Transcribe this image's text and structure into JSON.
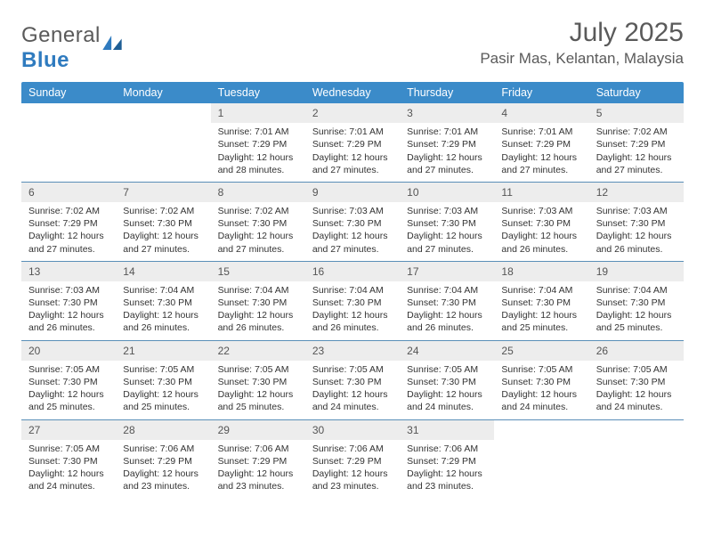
{
  "logo": {
    "text_gray": "General",
    "text_blue": "Blue"
  },
  "title": {
    "month": "July 2025",
    "location": "Pasir Mas, Kelantan, Malaysia"
  },
  "colors": {
    "header_bg": "#3b8bc9",
    "header_text": "#ffffff",
    "daynum_bg": "#ededed",
    "daynum_text": "#555555",
    "divider": "#5a8fb8",
    "logo_gray": "#5a5a5a",
    "logo_blue": "#2f7bbf",
    "body_text": "#333333",
    "page_bg": "#ffffff"
  },
  "typography": {
    "month_title_size": 30,
    "location_size": 17,
    "day_header_size": 12.5,
    "daynum_size": 12,
    "cell_text_size": 10.5,
    "font_family": "Arial"
  },
  "day_headers": [
    "Sunday",
    "Monday",
    "Tuesday",
    "Wednesday",
    "Thursday",
    "Friday",
    "Saturday"
  ],
  "weeks": [
    [
      {
        "empty": true
      },
      {
        "empty": true
      },
      {
        "day": "1",
        "sunrise": "Sunrise: 7:01 AM",
        "sunset": "Sunset: 7:29 PM",
        "daylight": "Daylight: 12 hours and 28 minutes."
      },
      {
        "day": "2",
        "sunrise": "Sunrise: 7:01 AM",
        "sunset": "Sunset: 7:29 PM",
        "daylight": "Daylight: 12 hours and 27 minutes."
      },
      {
        "day": "3",
        "sunrise": "Sunrise: 7:01 AM",
        "sunset": "Sunset: 7:29 PM",
        "daylight": "Daylight: 12 hours and 27 minutes."
      },
      {
        "day": "4",
        "sunrise": "Sunrise: 7:01 AM",
        "sunset": "Sunset: 7:29 PM",
        "daylight": "Daylight: 12 hours and 27 minutes."
      },
      {
        "day": "5",
        "sunrise": "Sunrise: 7:02 AM",
        "sunset": "Sunset: 7:29 PM",
        "daylight": "Daylight: 12 hours and 27 minutes."
      }
    ],
    [
      {
        "day": "6",
        "sunrise": "Sunrise: 7:02 AM",
        "sunset": "Sunset: 7:29 PM",
        "daylight": "Daylight: 12 hours and 27 minutes."
      },
      {
        "day": "7",
        "sunrise": "Sunrise: 7:02 AM",
        "sunset": "Sunset: 7:30 PM",
        "daylight": "Daylight: 12 hours and 27 minutes."
      },
      {
        "day": "8",
        "sunrise": "Sunrise: 7:02 AM",
        "sunset": "Sunset: 7:30 PM",
        "daylight": "Daylight: 12 hours and 27 minutes."
      },
      {
        "day": "9",
        "sunrise": "Sunrise: 7:03 AM",
        "sunset": "Sunset: 7:30 PM",
        "daylight": "Daylight: 12 hours and 27 minutes."
      },
      {
        "day": "10",
        "sunrise": "Sunrise: 7:03 AM",
        "sunset": "Sunset: 7:30 PM",
        "daylight": "Daylight: 12 hours and 27 minutes."
      },
      {
        "day": "11",
        "sunrise": "Sunrise: 7:03 AM",
        "sunset": "Sunset: 7:30 PM",
        "daylight": "Daylight: 12 hours and 26 minutes."
      },
      {
        "day": "12",
        "sunrise": "Sunrise: 7:03 AM",
        "sunset": "Sunset: 7:30 PM",
        "daylight": "Daylight: 12 hours and 26 minutes."
      }
    ],
    [
      {
        "day": "13",
        "sunrise": "Sunrise: 7:03 AM",
        "sunset": "Sunset: 7:30 PM",
        "daylight": "Daylight: 12 hours and 26 minutes."
      },
      {
        "day": "14",
        "sunrise": "Sunrise: 7:04 AM",
        "sunset": "Sunset: 7:30 PM",
        "daylight": "Daylight: 12 hours and 26 minutes."
      },
      {
        "day": "15",
        "sunrise": "Sunrise: 7:04 AM",
        "sunset": "Sunset: 7:30 PM",
        "daylight": "Daylight: 12 hours and 26 minutes."
      },
      {
        "day": "16",
        "sunrise": "Sunrise: 7:04 AM",
        "sunset": "Sunset: 7:30 PM",
        "daylight": "Daylight: 12 hours and 26 minutes."
      },
      {
        "day": "17",
        "sunrise": "Sunrise: 7:04 AM",
        "sunset": "Sunset: 7:30 PM",
        "daylight": "Daylight: 12 hours and 26 minutes."
      },
      {
        "day": "18",
        "sunrise": "Sunrise: 7:04 AM",
        "sunset": "Sunset: 7:30 PM",
        "daylight": "Daylight: 12 hours and 25 minutes."
      },
      {
        "day": "19",
        "sunrise": "Sunrise: 7:04 AM",
        "sunset": "Sunset: 7:30 PM",
        "daylight": "Daylight: 12 hours and 25 minutes."
      }
    ],
    [
      {
        "day": "20",
        "sunrise": "Sunrise: 7:05 AM",
        "sunset": "Sunset: 7:30 PM",
        "daylight": "Daylight: 12 hours and 25 minutes."
      },
      {
        "day": "21",
        "sunrise": "Sunrise: 7:05 AM",
        "sunset": "Sunset: 7:30 PM",
        "daylight": "Daylight: 12 hours and 25 minutes."
      },
      {
        "day": "22",
        "sunrise": "Sunrise: 7:05 AM",
        "sunset": "Sunset: 7:30 PM",
        "daylight": "Daylight: 12 hours and 25 minutes."
      },
      {
        "day": "23",
        "sunrise": "Sunrise: 7:05 AM",
        "sunset": "Sunset: 7:30 PM",
        "daylight": "Daylight: 12 hours and 24 minutes."
      },
      {
        "day": "24",
        "sunrise": "Sunrise: 7:05 AM",
        "sunset": "Sunset: 7:30 PM",
        "daylight": "Daylight: 12 hours and 24 minutes."
      },
      {
        "day": "25",
        "sunrise": "Sunrise: 7:05 AM",
        "sunset": "Sunset: 7:30 PM",
        "daylight": "Daylight: 12 hours and 24 minutes."
      },
      {
        "day": "26",
        "sunrise": "Sunrise: 7:05 AM",
        "sunset": "Sunset: 7:30 PM",
        "daylight": "Daylight: 12 hours and 24 minutes."
      }
    ],
    [
      {
        "day": "27",
        "sunrise": "Sunrise: 7:05 AM",
        "sunset": "Sunset: 7:30 PM",
        "daylight": "Daylight: 12 hours and 24 minutes."
      },
      {
        "day": "28",
        "sunrise": "Sunrise: 7:06 AM",
        "sunset": "Sunset: 7:29 PM",
        "daylight": "Daylight: 12 hours and 23 minutes."
      },
      {
        "day": "29",
        "sunrise": "Sunrise: 7:06 AM",
        "sunset": "Sunset: 7:29 PM",
        "daylight": "Daylight: 12 hours and 23 minutes."
      },
      {
        "day": "30",
        "sunrise": "Sunrise: 7:06 AM",
        "sunset": "Sunset: 7:29 PM",
        "daylight": "Daylight: 12 hours and 23 minutes."
      },
      {
        "day": "31",
        "sunrise": "Sunrise: 7:06 AM",
        "sunset": "Sunset: 7:29 PM",
        "daylight": "Daylight: 12 hours and 23 minutes."
      },
      {
        "empty": true
      },
      {
        "empty": true
      }
    ]
  ]
}
